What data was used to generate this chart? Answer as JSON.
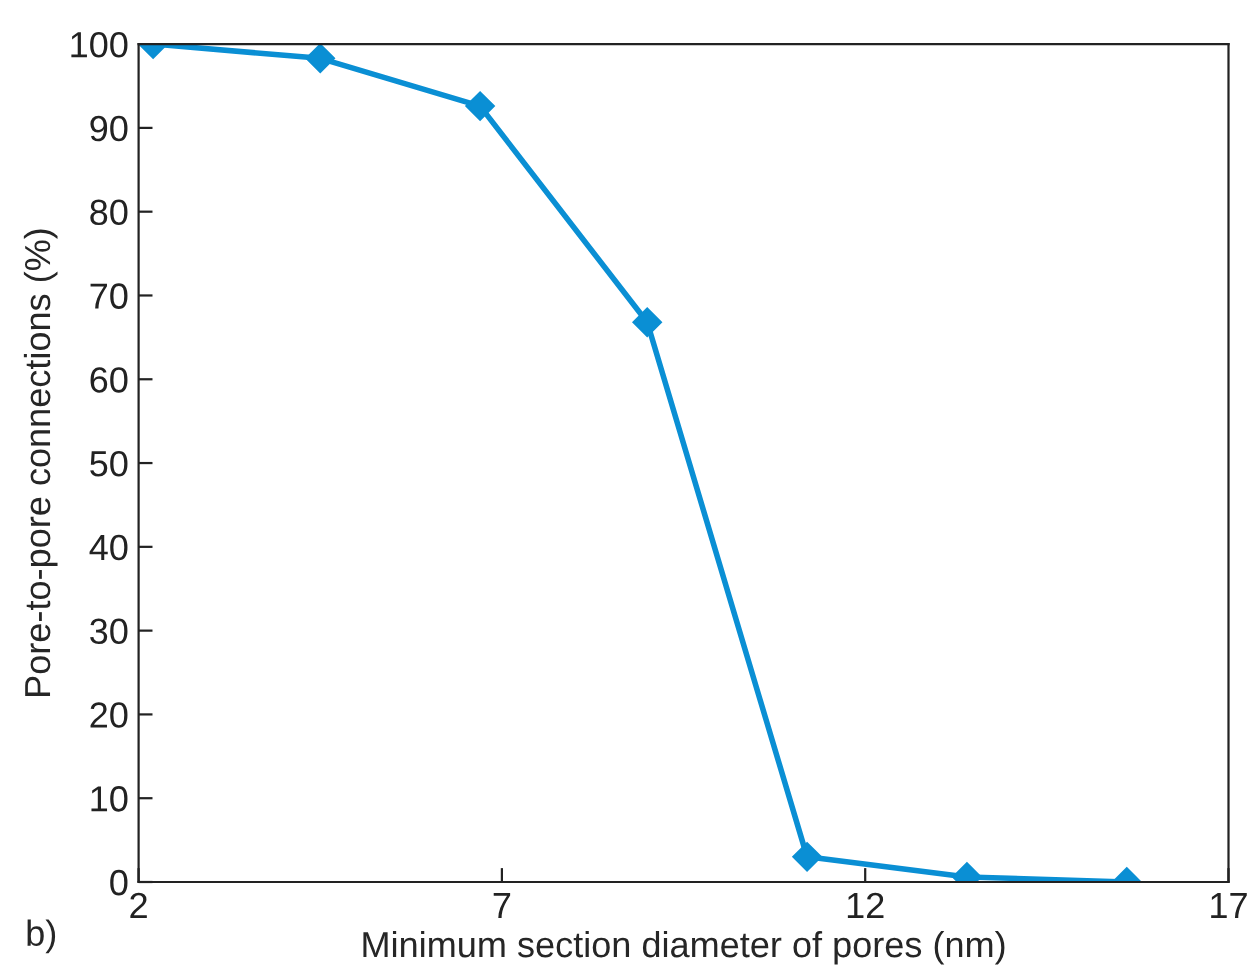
{
  "chart_data": {
    "type": "line",
    "xlabel": "Minimum section diameter of pores (nm)",
    "ylabel": "Pore-to-pore connections (%)",
    "annotations": [
      "b)"
    ],
    "x": [
      2.2,
      4.5,
      6.7,
      9.0,
      11.2,
      13.4,
      15.6
    ],
    "series": [
      {
        "color": "#0a8fd4",
        "values": [
          100,
          98.3,
          92.6,
          66.8,
          3,
          0.6,
          0
        ]
      }
    ],
    "xlim": [
      2,
      17
    ],
    "xticks": [
      2,
      7,
      12,
      17
    ],
    "ylim": [
      0,
      100
    ],
    "yticks": [
      0,
      10,
      20,
      30,
      40,
      50,
      60,
      70,
      80,
      90,
      100
    ],
    "grid": false,
    "legend": false,
    "marker": "diamond",
    "line_style": "solid"
  }
}
